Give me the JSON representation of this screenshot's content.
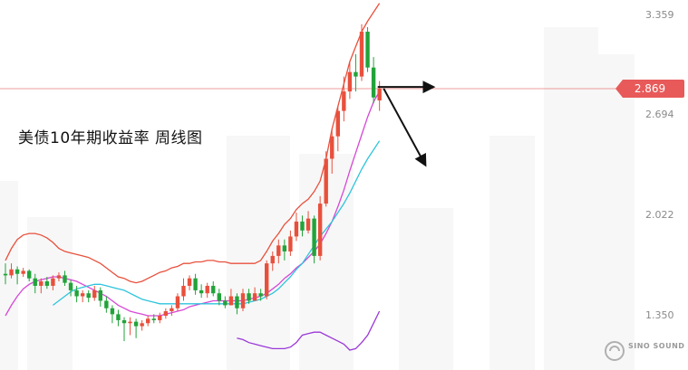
{
  "chart_data": {
    "type": "candlestick",
    "title": "美债10年期收益率  周线图",
    "y_ticks": [
      {
        "value": 3.359,
        "label": "3.359"
      },
      {
        "value": 2.694,
        "label": "2.694"
      },
      {
        "value": 2.022,
        "label": "2.022"
      },
      {
        "value": 1.35,
        "label": "1.350"
      }
    ],
    "current_price": {
      "value": 2.869,
      "label": "2.869"
    },
    "ylim": [
      1.11,
      3.48
    ],
    "grid": false,
    "colors": {
      "up": "#e8503c",
      "down": "#22a33a",
      "upper_band": "#e8503c",
      "middle_band": "#d648d6",
      "lower_band": "#9a38d8",
      "ma_line": "#2ec4dc",
      "price_line": "#e85a5a",
      "arrows": "#111111"
    },
    "candles": [
      [
        1.63,
        1.62,
        1.7,
        1.56
      ],
      [
        1.62,
        1.66,
        1.7,
        1.6
      ],
      [
        1.66,
        1.63,
        1.68,
        1.56
      ],
      [
        1.63,
        1.65,
        1.67,
        1.61
      ],
      [
        1.65,
        1.6,
        1.66,
        1.58
      ],
      [
        1.6,
        1.55,
        1.63,
        1.5
      ],
      [
        1.55,
        1.58,
        1.6,
        1.5
      ],
      [
        1.58,
        1.55,
        1.61,
        1.53
      ],
      [
        1.55,
        1.6,
        1.62,
        1.52
      ],
      [
        1.6,
        1.62,
        1.64,
        1.58
      ],
      [
        1.62,
        1.57,
        1.65,
        1.55
      ],
      [
        1.57,
        1.52,
        1.59,
        1.48
      ],
      [
        1.52,
        1.48,
        1.55,
        1.44
      ],
      [
        1.48,
        1.5,
        1.52,
        1.44
      ],
      [
        1.5,
        1.47,
        1.52,
        1.44
      ],
      [
        1.47,
        1.52,
        1.55,
        1.45
      ],
      [
        1.52,
        1.45,
        1.54,
        1.41
      ],
      [
        1.45,
        1.4,
        1.48,
        1.37
      ],
      [
        1.4,
        1.36,
        1.42,
        1.3
      ],
      [
        1.36,
        1.32,
        1.39,
        1.28
      ],
      [
        1.32,
        1.3,
        1.34,
        1.18
      ],
      [
        1.3,
        1.31,
        1.34,
        1.22
      ],
      [
        1.31,
        1.28,
        1.33,
        1.2
      ],
      [
        1.28,
        1.3,
        1.32,
        1.25
      ],
      [
        1.3,
        1.33,
        1.35,
        1.28
      ],
      [
        1.33,
        1.32,
        1.36,
        1.3
      ],
      [
        1.32,
        1.35,
        1.37,
        1.3
      ],
      [
        1.35,
        1.38,
        1.4,
        1.33
      ],
      [
        1.38,
        1.4,
        1.42,
        1.35
      ],
      [
        1.4,
        1.48,
        1.5,
        1.38
      ],
      [
        1.48,
        1.55,
        1.6,
        1.45
      ],
      [
        1.55,
        1.6,
        1.62,
        1.52
      ],
      [
        1.6,
        1.52,
        1.63,
        1.49
      ],
      [
        1.52,
        1.5,
        1.56,
        1.47
      ],
      [
        1.5,
        1.55,
        1.57,
        1.47
      ],
      [
        1.55,
        1.5,
        1.58,
        1.48
      ],
      [
        1.5,
        1.45,
        1.53,
        1.42
      ],
      [
        1.45,
        1.42,
        1.48,
        1.4
      ],
      [
        1.42,
        1.48,
        1.53,
        1.42
      ],
      [
        1.48,
        1.4,
        1.5,
        1.36
      ],
      [
        1.4,
        1.5,
        1.53,
        1.38
      ],
      [
        1.5,
        1.45,
        1.53,
        1.43
      ],
      [
        1.45,
        1.5,
        1.54,
        1.45
      ],
      [
        1.5,
        1.48,
        1.53,
        1.45
      ],
      [
        1.48,
        1.7,
        1.72,
        1.46
      ],
      [
        1.7,
        1.75,
        1.78,
        1.65
      ],
      [
        1.75,
        1.82,
        1.86,
        1.7
      ],
      [
        1.82,
        1.78,
        1.86,
        1.72
      ],
      [
        1.78,
        1.88,
        1.92,
        1.75
      ],
      [
        1.88,
        1.98,
        2.04,
        1.85
      ],
      [
        1.98,
        1.92,
        2.02,
        1.88
      ],
      [
        1.92,
        2.0,
        2.05,
        1.9
      ],
      [
        2.0,
        1.75,
        2.02,
        1.7
      ],
      [
        1.75,
        2.1,
        2.15,
        1.72
      ],
      [
        2.1,
        2.4,
        2.45,
        2.08
      ],
      [
        2.4,
        2.55,
        2.6,
        2.3
      ],
      [
        2.55,
        2.72,
        2.75,
        2.45
      ],
      [
        2.72,
        2.85,
        2.95,
        2.65
      ],
      [
        2.85,
        2.98,
        3.05,
        2.8
      ],
      [
        2.98,
        2.95,
        3.1,
        2.85
      ],
      [
        2.95,
        3.25,
        3.3,
        2.92
      ],
      [
        3.25,
        3.01,
        3.28,
        2.98
      ],
      [
        3.01,
        2.81,
        3.08,
        2.77
      ],
      [
        2.79,
        2.87,
        2.92,
        2.72
      ]
    ],
    "bands": {
      "upper": [
        1.72,
        1.8,
        1.86,
        1.89,
        1.9,
        1.9,
        1.89,
        1.87,
        1.84,
        1.8,
        1.78,
        1.77,
        1.76,
        1.75,
        1.74,
        1.72,
        1.7,
        1.67,
        1.64,
        1.61,
        1.6,
        1.58,
        1.57,
        1.58,
        1.6,
        1.62,
        1.64,
        1.65,
        1.67,
        1.68,
        1.7,
        1.7,
        1.71,
        1.71,
        1.72,
        1.72,
        1.71,
        1.71,
        1.7,
        1.7,
        1.7,
        1.7,
        1.7,
        1.72,
        1.78,
        1.85,
        1.9,
        1.96,
        2.0,
        2.06,
        2.1,
        2.13,
        2.18,
        2.25,
        2.4,
        2.6,
        2.75,
        2.9,
        3.05,
        3.15,
        3.25,
        3.32,
        3.38,
        3.44
      ],
      "middle": [
        1.35,
        1.42,
        1.48,
        1.53,
        1.56,
        1.58,
        1.59,
        1.6,
        1.61,
        1.61,
        1.6,
        1.59,
        1.58,
        1.56,
        1.54,
        1.52,
        1.5,
        1.48,
        1.45,
        1.42,
        1.4,
        1.38,
        1.37,
        1.36,
        1.35,
        1.35,
        1.35,
        1.36,
        1.37,
        1.38,
        1.39,
        1.41,
        1.42,
        1.43,
        1.44,
        1.45,
        1.45,
        1.45,
        1.45,
        1.45,
        1.45,
        1.46,
        1.47,
        1.48,
        1.5,
        1.53,
        1.56,
        1.6,
        1.63,
        1.67,
        1.7,
        1.74,
        1.78,
        1.83,
        1.9,
        1.98,
        2.08,
        2.19,
        2.32,
        2.44,
        2.56,
        2.68,
        2.78,
        2.85
      ],
      "lower": [
        null,
        null,
        null,
        null,
        null,
        null,
        null,
        null,
        null,
        null,
        null,
        null,
        null,
        null,
        null,
        null,
        null,
        null,
        null,
        null,
        null,
        null,
        null,
        null,
        null,
        null,
        null,
        null,
        null,
        null,
        null,
        null,
        null,
        null,
        null,
        null,
        null,
        null,
        null,
        1.2,
        1.19,
        1.17,
        1.16,
        1.15,
        1.14,
        1.13,
        1.13,
        1.13,
        1.14,
        1.17,
        1.22,
        1.23,
        1.24,
        1.24,
        1.22,
        1.2,
        1.18,
        1.16,
        1.12,
        1.13,
        1.17,
        1.22,
        1.3,
        1.38
      ]
    },
    "ma_line": [
      null,
      null,
      null,
      null,
      null,
      null,
      null,
      null,
      1.42,
      1.45,
      1.48,
      1.51,
      1.53,
      1.54,
      1.55,
      1.56,
      1.56,
      1.55,
      1.54,
      1.53,
      1.52,
      1.5,
      1.48,
      1.46,
      1.45,
      1.44,
      1.43,
      1.43,
      1.43,
      1.43,
      1.43,
      1.43,
      1.43,
      1.43,
      1.43,
      1.43,
      1.43,
      1.43,
      1.43,
      1.43,
      1.43,
      1.44,
      1.45,
      1.46,
      1.48,
      1.5,
      1.53,
      1.57,
      1.61,
      1.66,
      1.7,
      1.76,
      1.82,
      1.88,
      1.93,
      1.98,
      2.04,
      2.1,
      2.17,
      2.25,
      2.33,
      2.4,
      2.46,
      2.52
    ],
    "arrows": [
      {
        "from": [
          62.7,
          2.88
        ],
        "to": [
          72,
          2.88
        ]
      },
      {
        "from": [
          63.7,
          2.87
        ],
        "to": [
          70.7,
          2.36
        ]
      }
    ],
    "watermark": "SINO SOUND"
  }
}
